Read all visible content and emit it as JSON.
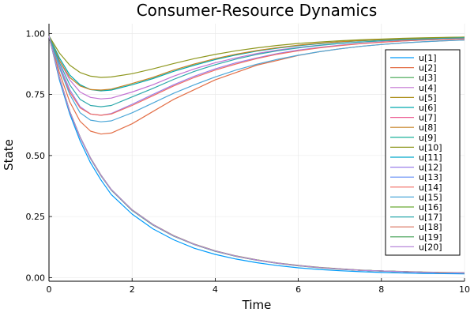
{
  "chart_data": {
    "type": "line",
    "title": "Consumer-Resource Dynamics",
    "xlabel": "Time",
    "ylabel": "State",
    "xlim": [
      0,
      10
    ],
    "ylim": [
      -0.015,
      1.04
    ],
    "xticks": [
      "0",
      "2",
      "4",
      "6",
      "8",
      "10"
    ],
    "xtick_values": [
      0,
      2,
      4,
      6,
      8,
      10
    ],
    "yticks": [
      "0.00",
      "0.25",
      "0.50",
      "0.75",
      "1.00"
    ],
    "ytick_values": [
      0,
      0.25,
      0.5,
      0.75,
      1.0
    ],
    "grid": true,
    "legend_position": "right",
    "x": [
      0,
      0.25,
      0.5,
      0.75,
      1,
      1.25,
      1.5,
      2,
      2.5,
      3,
      3.5,
      4,
      4.5,
      5,
      5.5,
      6,
      6.5,
      7,
      7.5,
      8,
      8.5,
      9,
      9.5,
      10
    ],
    "series": [
      {
        "name": "u[1]",
        "color": "#009AFA",
        "values": [
          0.99,
          0.81,
          0.67,
          0.56,
          0.47,
          0.4,
          0.34,
          0.26,
          0.2,
          0.155,
          0.12,
          0.095,
          0.076,
          0.061,
          0.049,
          0.04,
          0.033,
          0.028,
          0.024,
          0.021,
          0.019,
          0.017,
          0.016,
          0.015
        ]
      },
      {
        "name": "u[2]",
        "color": "#E36F47",
        "values": [
          0.99,
          0.84,
          0.72,
          0.64,
          0.6,
          0.588,
          0.592,
          0.63,
          0.68,
          0.73,
          0.77,
          0.81,
          0.84,
          0.87,
          0.89,
          0.91,
          0.925,
          0.937,
          0.947,
          0.955,
          0.961,
          0.966,
          0.97,
          0.973
        ]
      },
      {
        "name": "u[3]",
        "color": "#3EA44E",
        "values": [
          0.99,
          0.82,
          0.68,
          0.575,
          0.487,
          0.417,
          0.358,
          0.275,
          0.215,
          0.17,
          0.135,
          0.108,
          0.087,
          0.071,
          0.058,
          0.048,
          0.04,
          0.034,
          0.03,
          0.026,
          0.024,
          0.022,
          0.02,
          0.019
        ]
      },
      {
        "name": "u[4]",
        "color": "#C271D2",
        "values": [
          0.99,
          0.89,
          0.81,
          0.76,
          0.738,
          0.732,
          0.735,
          0.76,
          0.79,
          0.825,
          0.855,
          0.88,
          0.9,
          0.918,
          0.932,
          0.943,
          0.952,
          0.959,
          0.965,
          0.969,
          0.973,
          0.976,
          0.978,
          0.98
        ]
      },
      {
        "name": "u[5]",
        "color": "#AC8E18",
        "values": [
          0.99,
          0.82,
          0.68,
          0.575,
          0.49,
          0.42,
          0.36,
          0.278,
          0.218,
          0.172,
          0.137,
          0.11,
          0.089,
          0.073,
          0.06,
          0.05,
          0.042,
          0.036,
          0.031,
          0.027,
          0.025,
          0.023,
          0.021,
          0.02
        ]
      },
      {
        "name": "u[6]",
        "color": "#00A9AD",
        "values": [
          0.99,
          0.9,
          0.83,
          0.79,
          0.77,
          0.765,
          0.768,
          0.79,
          0.815,
          0.845,
          0.87,
          0.893,
          0.912,
          0.928,
          0.94,
          0.95,
          0.958,
          0.965,
          0.97,
          0.974,
          0.977,
          0.98,
          0.982,
          0.984
        ]
      },
      {
        "name": "u[7]",
        "color": "#ED5E93",
        "values": [
          0.99,
          0.82,
          0.68,
          0.575,
          0.489,
          0.419,
          0.36,
          0.277,
          0.217,
          0.171,
          0.136,
          0.109,
          0.088,
          0.072,
          0.059,
          0.049,
          0.041,
          0.035,
          0.03,
          0.027,
          0.024,
          0.022,
          0.02,
          0.019
        ]
      },
      {
        "name": "u[8]",
        "color": "#C68225",
        "values": [
          0.99,
          0.89,
          0.82,
          0.785,
          0.77,
          0.768,
          0.772,
          0.795,
          0.82,
          0.85,
          0.875,
          0.897,
          0.915,
          0.93,
          0.942,
          0.952,
          0.96,
          0.966,
          0.971,
          0.975,
          0.978,
          0.981,
          0.983,
          0.985
        ]
      },
      {
        "name": "u[9]",
        "color": "#00A98D",
        "values": [
          0.99,
          0.82,
          0.68,
          0.575,
          0.488,
          0.418,
          0.359,
          0.276,
          0.216,
          0.17,
          0.135,
          0.108,
          0.088,
          0.072,
          0.059,
          0.049,
          0.041,
          0.035,
          0.03,
          0.027,
          0.024,
          0.022,
          0.02,
          0.019
        ]
      },
      {
        "name": "u[10]",
        "color": "#8E971E",
        "values": [
          0.99,
          0.92,
          0.87,
          0.84,
          0.825,
          0.82,
          0.822,
          0.835,
          0.855,
          0.877,
          0.897,
          0.914,
          0.929,
          0.941,
          0.951,
          0.959,
          0.965,
          0.97,
          0.974,
          0.977,
          0.98,
          0.982,
          0.984,
          0.985
        ]
      },
      {
        "name": "u[11]",
        "color": "#00A8CB",
        "values": [
          0.99,
          0.82,
          0.68,
          0.575,
          0.489,
          0.419,
          0.36,
          0.277,
          0.217,
          0.171,
          0.136,
          0.109,
          0.088,
          0.072,
          0.059,
          0.049,
          0.041,
          0.035,
          0.03,
          0.027,
          0.024,
          0.022,
          0.02,
          0.019
        ]
      },
      {
        "name": "u[12]",
        "color": "#9B7FE9",
        "values": [
          0.99,
          0.87,
          0.77,
          0.7,
          0.67,
          0.665,
          0.672,
          0.71,
          0.75,
          0.79,
          0.825,
          0.855,
          0.88,
          0.9,
          0.918,
          0.932,
          0.943,
          0.952,
          0.959,
          0.965,
          0.969,
          0.973,
          0.976,
          0.978
        ]
      },
      {
        "name": "u[13]",
        "color": "#608CF6",
        "values": [
          0.99,
          0.82,
          0.68,
          0.575,
          0.489,
          0.419,
          0.36,
          0.277,
          0.217,
          0.171,
          0.136,
          0.109,
          0.088,
          0.072,
          0.059,
          0.049,
          0.041,
          0.035,
          0.03,
          0.027,
          0.024,
          0.022,
          0.02,
          0.019
        ]
      },
      {
        "name": "u[14]",
        "color": "#F16C62",
        "values": [
          0.99,
          0.86,
          0.76,
          0.695,
          0.67,
          0.665,
          0.67,
          0.705,
          0.745,
          0.785,
          0.82,
          0.85,
          0.875,
          0.897,
          0.915,
          0.929,
          0.941,
          0.95,
          0.958,
          0.964,
          0.969,
          0.973,
          0.976,
          0.978
        ]
      },
      {
        "name": "u[15]",
        "color": "#4DA7D8",
        "values": [
          0.99,
          0.86,
          0.75,
          0.675,
          0.645,
          0.638,
          0.642,
          0.675,
          0.715,
          0.755,
          0.79,
          0.822,
          0.85,
          0.874,
          0.894,
          0.911,
          0.925,
          0.937,
          0.947,
          0.955,
          0.961,
          0.966,
          0.97,
          0.973
        ]
      },
      {
        "name": "u[16]",
        "color": "#6BAA35",
        "values": [
          0.99,
          0.82,
          0.68,
          0.575,
          0.489,
          0.419,
          0.36,
          0.277,
          0.217,
          0.171,
          0.136,
          0.109,
          0.088,
          0.072,
          0.059,
          0.049,
          0.041,
          0.035,
          0.03,
          0.027,
          0.024,
          0.022,
          0.02,
          0.019
        ]
      },
      {
        "name": "u[17]",
        "color": "#2BA8AB",
        "values": [
          0.99,
          0.88,
          0.79,
          0.73,
          0.705,
          0.7,
          0.705,
          0.74,
          0.775,
          0.812,
          0.845,
          0.872,
          0.895,
          0.914,
          0.929,
          0.941,
          0.951,
          0.959,
          0.965,
          0.97,
          0.974,
          0.977,
          0.98,
          0.982
        ]
      },
      {
        "name": "u[18]",
        "color": "#D96F5A",
        "values": [
          0.99,
          0.82,
          0.68,
          0.575,
          0.489,
          0.419,
          0.36,
          0.277,
          0.217,
          0.171,
          0.136,
          0.109,
          0.088,
          0.072,
          0.059,
          0.049,
          0.041,
          0.035,
          0.03,
          0.027,
          0.024,
          0.022,
          0.02,
          0.019
        ]
      },
      {
        "name": "u[19]",
        "color": "#3F9E50",
        "values": [
          0.99,
          0.82,
          0.68,
          0.575,
          0.489,
          0.419,
          0.36,
          0.277,
          0.217,
          0.171,
          0.136,
          0.109,
          0.088,
          0.072,
          0.059,
          0.049,
          0.041,
          0.035,
          0.03,
          0.027,
          0.024,
          0.022,
          0.02,
          0.019
        ]
      },
      {
        "name": "u[20]",
        "color": "#B887D9",
        "values": [
          0.99,
          0.82,
          0.68,
          0.575,
          0.489,
          0.419,
          0.36,
          0.277,
          0.217,
          0.171,
          0.136,
          0.109,
          0.088,
          0.072,
          0.059,
          0.049,
          0.041,
          0.035,
          0.03,
          0.027,
          0.024,
          0.022,
          0.02,
          0.019
        ]
      }
    ]
  }
}
